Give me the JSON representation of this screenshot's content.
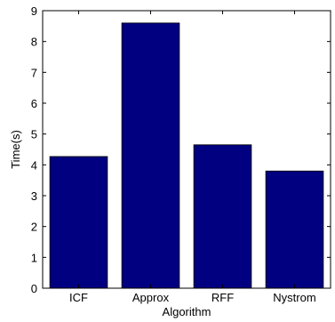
{
  "chart_data": {
    "type": "bar",
    "categories": [
      "ICF",
      "Approx",
      "RFF",
      "Nystrom"
    ],
    "values": [
      4.27,
      8.6,
      4.65,
      3.8
    ],
    "xlabel": "Algorithm",
    "ylabel": "Time(s)",
    "ylim": [
      0,
      9
    ],
    "yticks": [
      "0",
      "1",
      "2",
      "3",
      "4",
      "5",
      "6",
      "7",
      "8",
      "9"
    ],
    "grid": false,
    "bar_color": "#000080"
  }
}
